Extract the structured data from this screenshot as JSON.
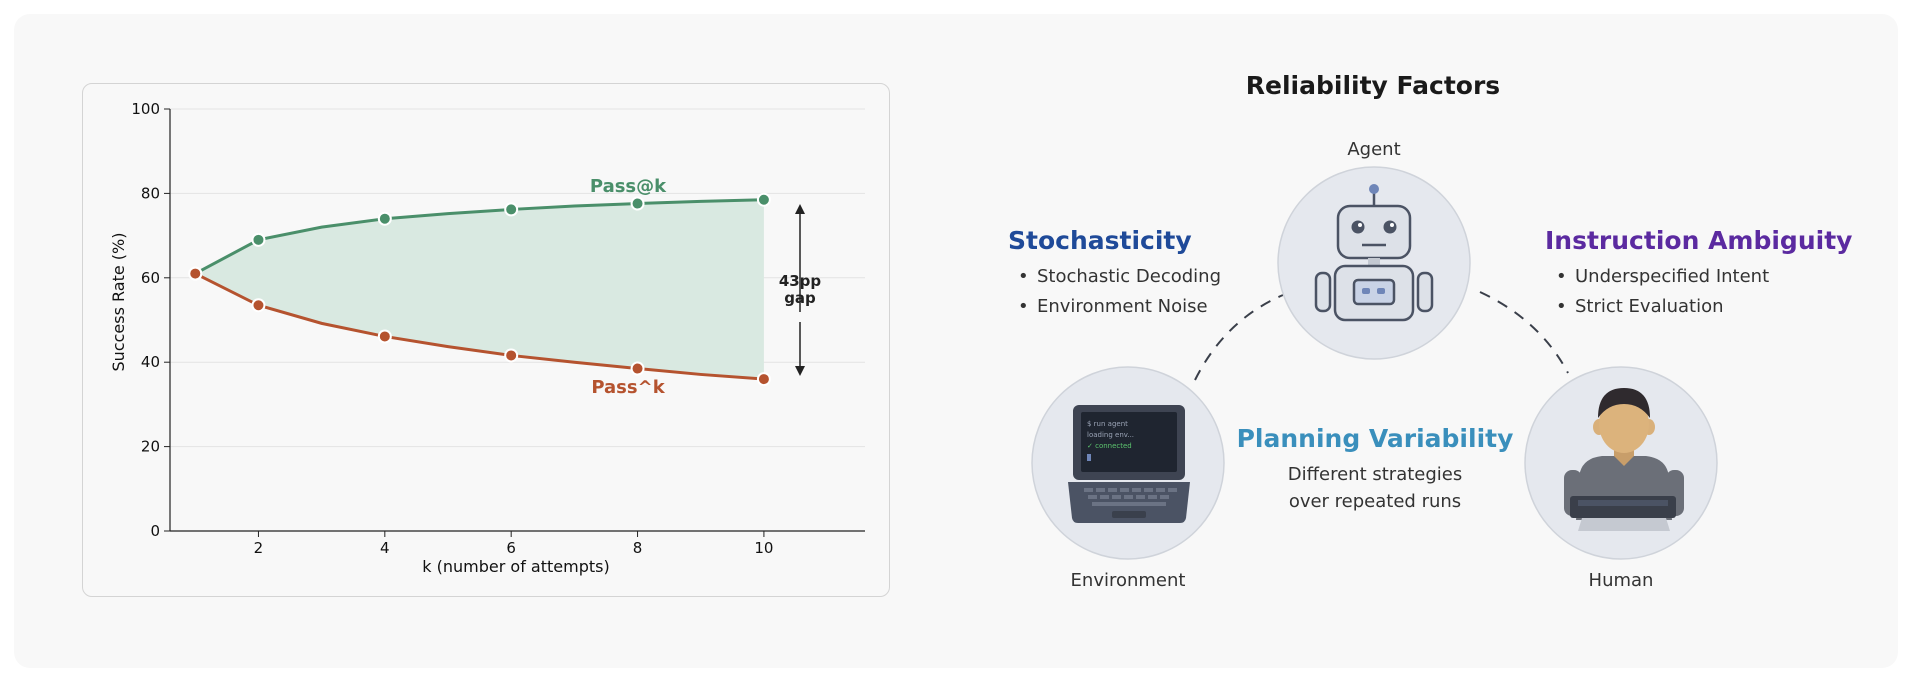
{
  "chart_data": {
    "type": "line",
    "x": [
      1,
      2,
      3,
      4,
      5,
      6,
      7,
      8,
      9,
      10
    ],
    "series": [
      {
        "name": "Pass@k",
        "values": [
          61,
          69,
          72,
          74,
          75.2,
          76.2,
          77,
          77.6,
          78.1,
          78.5
        ],
        "color": "#4a8f6a"
      },
      {
        "name": "Pass^k",
        "values": [
          61,
          53.5,
          49.2,
          46.1,
          43.7,
          41.6,
          40,
          38.5,
          37.1,
          36
        ]
      }
    ],
    "marker_x": [
      1,
      2,
      4,
      6,
      8,
      10
    ],
    "xlabel": "k  (number of attempts)",
    "ylabel": "Success Rate (%)",
    "xticks": [
      2,
      4,
      6,
      8,
      10
    ],
    "yticks": [
      0,
      20,
      40,
      60,
      80,
      100
    ],
    "xlim": [
      0.6,
      11.6
    ],
    "ylim": [
      0,
      100
    ],
    "grid": true,
    "annotation": {
      "line1": "43pp",
      "line2": "gap"
    },
    "colors": {
      "pass_at_k": "#4a8f6a",
      "pass_hat_k": "#b5532f",
      "fill": "#d9e9e1"
    }
  },
  "diagram": {
    "title": "Reliability Factors",
    "nodes": {
      "agent": "Agent",
      "environment": "Environment",
      "human": "Human"
    },
    "terminal_lines": [
      "$ run agent",
      "loading env...",
      "✓ connected"
    ],
    "stochasticity": {
      "title": "Stochasticity",
      "color": "#1f4a99",
      "items": [
        "Stochastic Decoding",
        "Environment Noise"
      ]
    },
    "instruction_ambiguity": {
      "title": "Instruction Ambiguity",
      "color": "#5b2aa0",
      "items": [
        "Underspecified Intent",
        "Strict Evaluation"
      ]
    },
    "planning_variability": {
      "title": "Planning Variability",
      "color": "#3a8fbc",
      "line1": "Different strategies",
      "line2": "over repeated runs"
    },
    "icons": [
      "robot-icon",
      "laptop-icon",
      "person-icon"
    ]
  }
}
